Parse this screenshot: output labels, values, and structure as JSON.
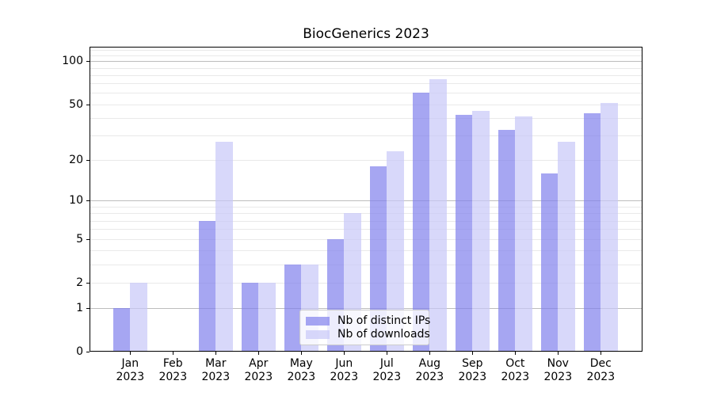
{
  "chart_data": {
    "type": "bar",
    "title": "BiocGenerics 2023",
    "categories": [
      "Jan 2023",
      "Feb 2023",
      "Mar 2023",
      "Apr 2023",
      "May 2023",
      "Jun 2023",
      "Jul 2023",
      "Aug 2023",
      "Sep 2023",
      "Oct 2023",
      "Nov 2023",
      "Dec 2023"
    ],
    "series": [
      {
        "name": "Nb of distinct IPs",
        "values": [
          1,
          0,
          7,
          2,
          3,
          5,
          18,
          60,
          42,
          33,
          16,
          43
        ],
        "color": "rgba(128,128,237,0.7)"
      },
      {
        "name": "Nb of downloads",
        "values": [
          2,
          0,
          27,
          2,
          3,
          8,
          23,
          75,
          45,
          41,
          27,
          51
        ],
        "color": "rgba(200,200,248,0.7)"
      }
    ],
    "xlabel": "",
    "ylabel": "",
    "yscale": "log1p",
    "yticks": [
      0,
      1,
      2,
      5,
      10,
      20,
      50,
      100
    ],
    "ylim": [
      0,
      126
    ],
    "grid": "horizontal",
    "legend_position": "lower-center-inside"
  },
  "style": {
    "bar_ips": "rgba(128,128,237,0.7)",
    "bar_downloads": "rgba(200,200,248,0.7)",
    "grid_major": "#bdbdbd",
    "grid_minor": "#e9e9e9",
    "spine": "#000000",
    "legend_bg": "rgba(255,255,255,0.8)",
    "legend_border": "#cccccc",
    "text": "#000000"
  }
}
